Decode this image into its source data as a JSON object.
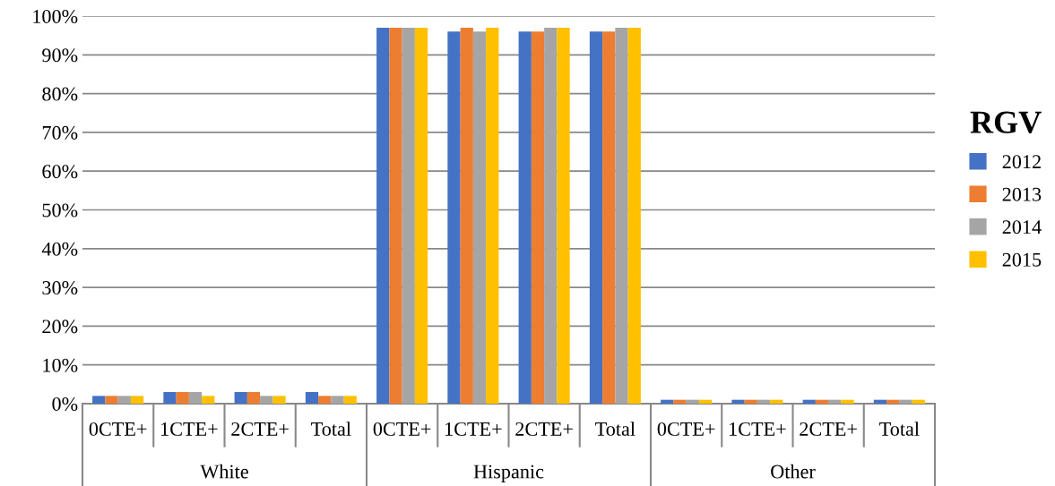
{
  "chart_data": {
    "type": "bar",
    "categories": [
      "0CTE+",
      "1CTE+",
      "2CTE+",
      "Total",
      "0CTE+",
      "1CTE+",
      "2CTE+",
      "Total",
      "0CTE+",
      "1CTE+",
      "2CTE+",
      "Total"
    ],
    "annotations": [
      "White",
      "Hispanic",
      "Other"
    ],
    "series": [
      {
        "name": "2012",
        "color": "#4472c4",
        "values": [
          2,
          3,
          3,
          3,
          97,
          96,
          96,
          96,
          1,
          1,
          1,
          1
        ]
      },
      {
        "name": "2013",
        "color": "#ed7d31",
        "values": [
          2,
          3,
          3,
          2,
          97,
          97,
          96,
          96,
          1,
          1,
          1,
          1
        ]
      },
      {
        "name": "2014",
        "color": "#a5a5a5",
        "values": [
          2,
          3,
          2,
          2,
          97,
          96,
          97,
          97,
          1,
          1,
          1,
          1
        ]
      },
      {
        "name": "2015",
        "color": "#ffc000",
        "values": [
          2,
          2,
          2,
          2,
          97,
          97,
          97,
          97,
          1,
          1,
          1,
          1
        ]
      }
    ],
    "legend_title": "RGV",
    "ylim": [
      0,
      100
    ],
    "yticks": [
      {
        "value": 0,
        "label": "0%"
      },
      {
        "value": 10,
        "label": "10%"
      },
      {
        "value": 20,
        "label": "20%"
      },
      {
        "value": 30,
        "label": "30%"
      },
      {
        "value": 40,
        "label": "40%"
      },
      {
        "value": 50,
        "label": "50%"
      },
      {
        "value": 60,
        "label": "60%"
      },
      {
        "value": 70,
        "label": "70%"
      },
      {
        "value": 80,
        "label": "80%"
      },
      {
        "value": 90,
        "label": "90%"
      },
      {
        "value": 100,
        "label": "100%"
      }
    ],
    "grid": "y",
    "legend": "right"
  }
}
